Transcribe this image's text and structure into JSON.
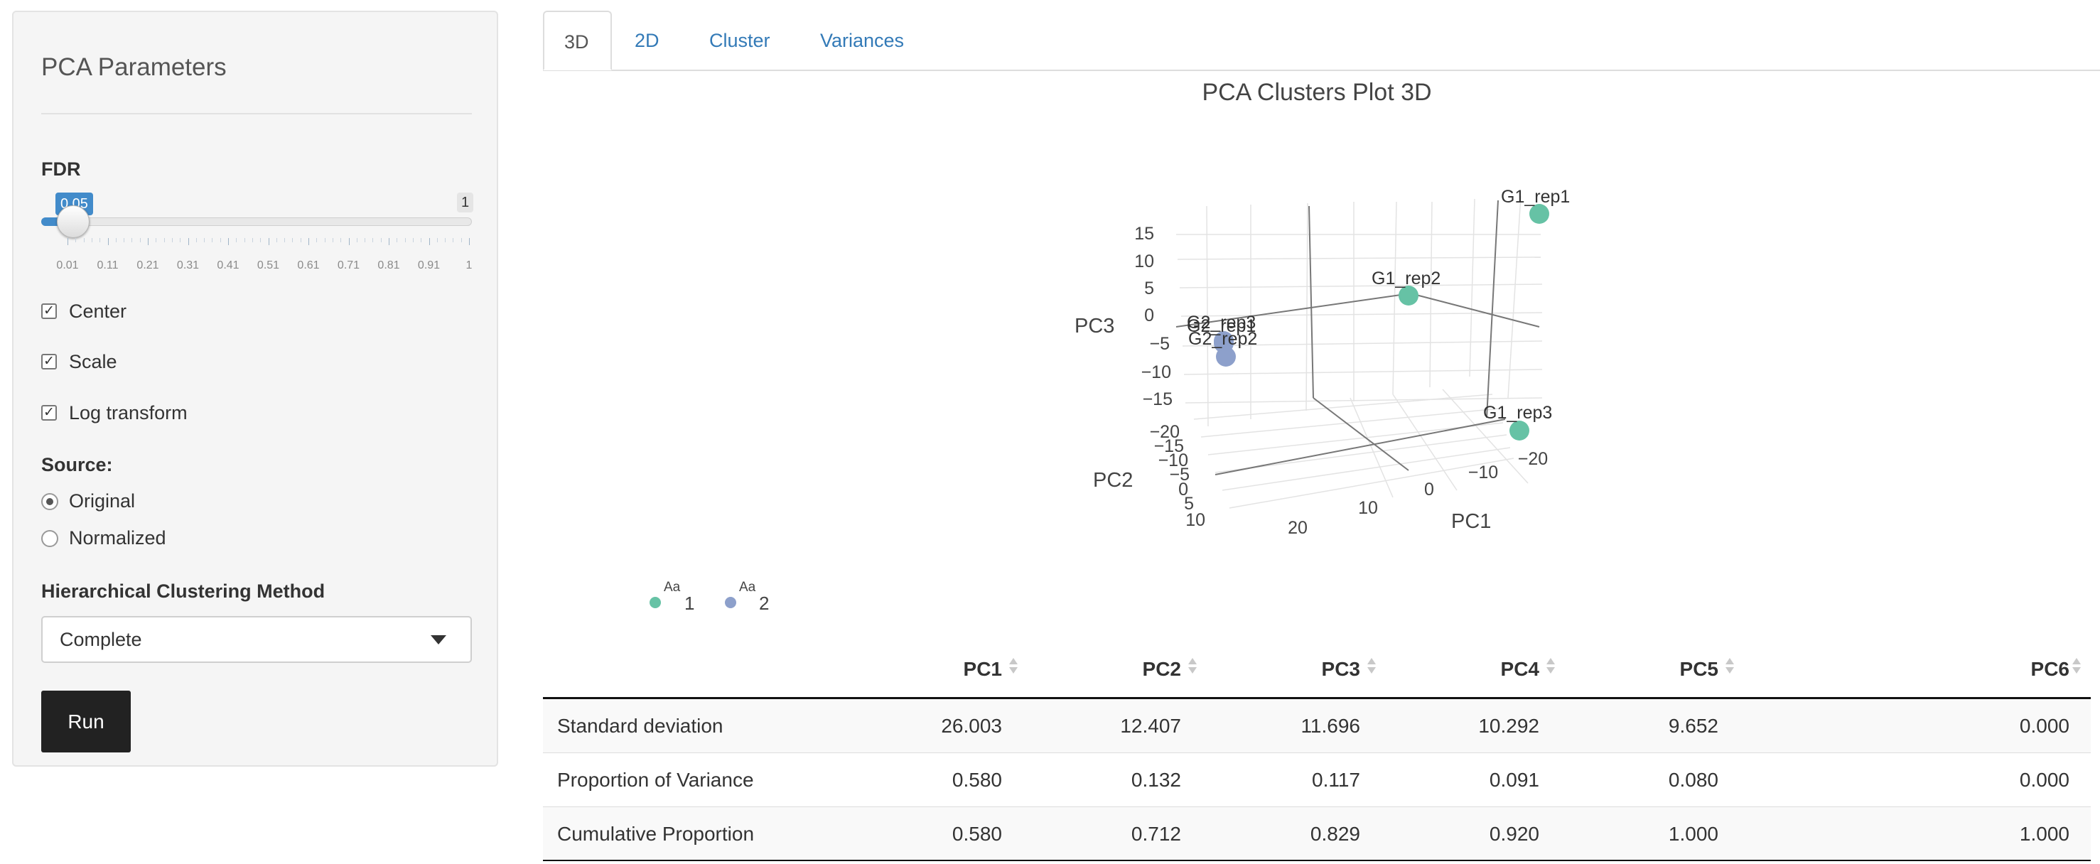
{
  "sidebar": {
    "title": "PCA Parameters",
    "fdr": {
      "label": "FDR",
      "value": "0.05",
      "max": "1",
      "fraction": 0.04,
      "ticks": [
        "0.01",
        "0.11",
        "0.21",
        "0.31",
        "0.41",
        "0.51",
        "0.61",
        "0.71",
        "0.81",
        "0.91",
        "1"
      ]
    },
    "checkboxes": [
      {
        "label": "Center",
        "checked": true
      },
      {
        "label": "Scale",
        "checked": true
      },
      {
        "label": "Log transform",
        "checked": true
      }
    ],
    "source": {
      "label": "Source:",
      "options": [
        {
          "label": "Original",
          "selected": true
        },
        {
          "label": "Normalized",
          "selected": false
        }
      ]
    },
    "clustering": {
      "label": "Hierarchical Clustering Method",
      "selected": "Complete"
    },
    "run_label": "Run"
  },
  "tabs": [
    {
      "label": "3D",
      "active": true
    },
    {
      "label": "2D",
      "active": false
    },
    {
      "label": "Cluster",
      "active": false
    },
    {
      "label": "Variances",
      "active": false
    }
  ],
  "chart_data": {
    "type": "scatter",
    "title": "PCA Clusters Plot 3D",
    "axes": {
      "x": {
        "label": "PC1",
        "ticks": [
          "20",
          "10",
          "0",
          "−10",
          "−20"
        ]
      },
      "y": {
        "label": "PC2",
        "ticks": [
          "−20",
          "−15",
          "−10",
          "−5",
          "0",
          "5",
          "10"
        ]
      },
      "z": {
        "label": "PC3",
        "ticks": [
          "15",
          "10",
          "5",
          "0",
          "−5",
          "−10",
          "−15"
        ]
      }
    },
    "colors": {
      "1": "#66c2a5",
      "2": "#8da0cb"
    },
    "points": [
      {
        "label": "G1_rep1",
        "group": "1"
      },
      {
        "label": "G1_rep2",
        "group": "1"
      },
      {
        "label": "G1_rep3",
        "group": "1"
      },
      {
        "label": "G2_rep1",
        "group": "2"
      },
      {
        "label": "G2_rep2",
        "group": "2"
      },
      {
        "label": "G2_rep3",
        "group": "2"
      }
    ],
    "legend": [
      {
        "symbol_text": "Aa",
        "name": "1",
        "color": "#66c2a5"
      },
      {
        "symbol_text": "Aa",
        "name": "2",
        "color": "#8da0cb"
      }
    ]
  },
  "table": {
    "headers": [
      "PC1",
      "PC2",
      "PC3",
      "PC4",
      "PC5",
      "PC6"
    ],
    "rows": [
      {
        "label": "Standard deviation",
        "values": [
          "26.003",
          "12.407",
          "11.696",
          "10.292",
          "9.652",
          "0.000"
        ]
      },
      {
        "label": "Proportion of Variance",
        "values": [
          "0.580",
          "0.132",
          "0.117",
          "0.091",
          "0.080",
          "0.000"
        ]
      },
      {
        "label": "Cumulative Proportion",
        "values": [
          "0.580",
          "0.712",
          "0.829",
          "0.920",
          "1.000",
          "1.000"
        ]
      }
    ]
  }
}
